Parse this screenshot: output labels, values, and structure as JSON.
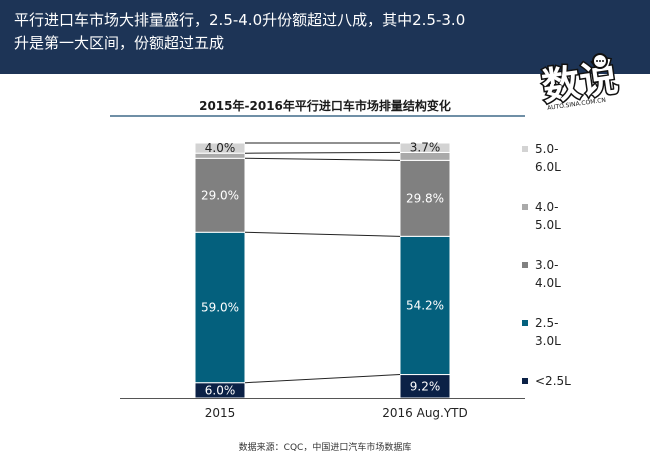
{
  "header": {
    "text": "平行进口车市场大排量盛行，2.5-4.0升份额超过八成，其中2.5-3.0升是第一大区间，份额超过五成"
  },
  "logo": {
    "main_text": "数说",
    "sub_text": "AUTO.SINA.COM.CN"
  },
  "chart_data": {
    "type": "bar",
    "stacked": true,
    "percent": true,
    "title": "2015年-2016年平行进口车市场排量结构变化",
    "categories": [
      "2015",
      "2016 Aug.YTD"
    ],
    "series": [
      {
        "name": "<2.5L",
        "color": "#0b2146",
        "values": [
          6.0,
          9.2
        ],
        "labels": [
          "6.0%",
          "9.2%"
        ]
      },
      {
        "name": "2.5-\n3.0L",
        "color": "#04607d",
        "values": [
          59.0,
          54.2
        ],
        "labels": [
          "59.0%",
          "54.2%"
        ]
      },
      {
        "name": "3.0-\n4.0L",
        "color": "#808080",
        "values": [
          29.0,
          29.8
        ],
        "labels": [
          "29.0%",
          "29.8%"
        ]
      },
      {
        "name": "4.0-\n5.0L",
        "color": "#aaaaaa",
        "values": [
          2.0,
          3.1
        ],
        "labels": [
          "",
          ""
        ]
      },
      {
        "name": "5.0-\n6.0L",
        "color": "#d3d3d3",
        "values": [
          4.0,
          3.7
        ],
        "labels": [
          "4.0%",
          "3.7%"
        ]
      }
    ],
    "ylim": [
      0,
      100
    ],
    "legend": "right"
  },
  "source": "数据来源：CQC，中国进口汽车市场数据库"
}
